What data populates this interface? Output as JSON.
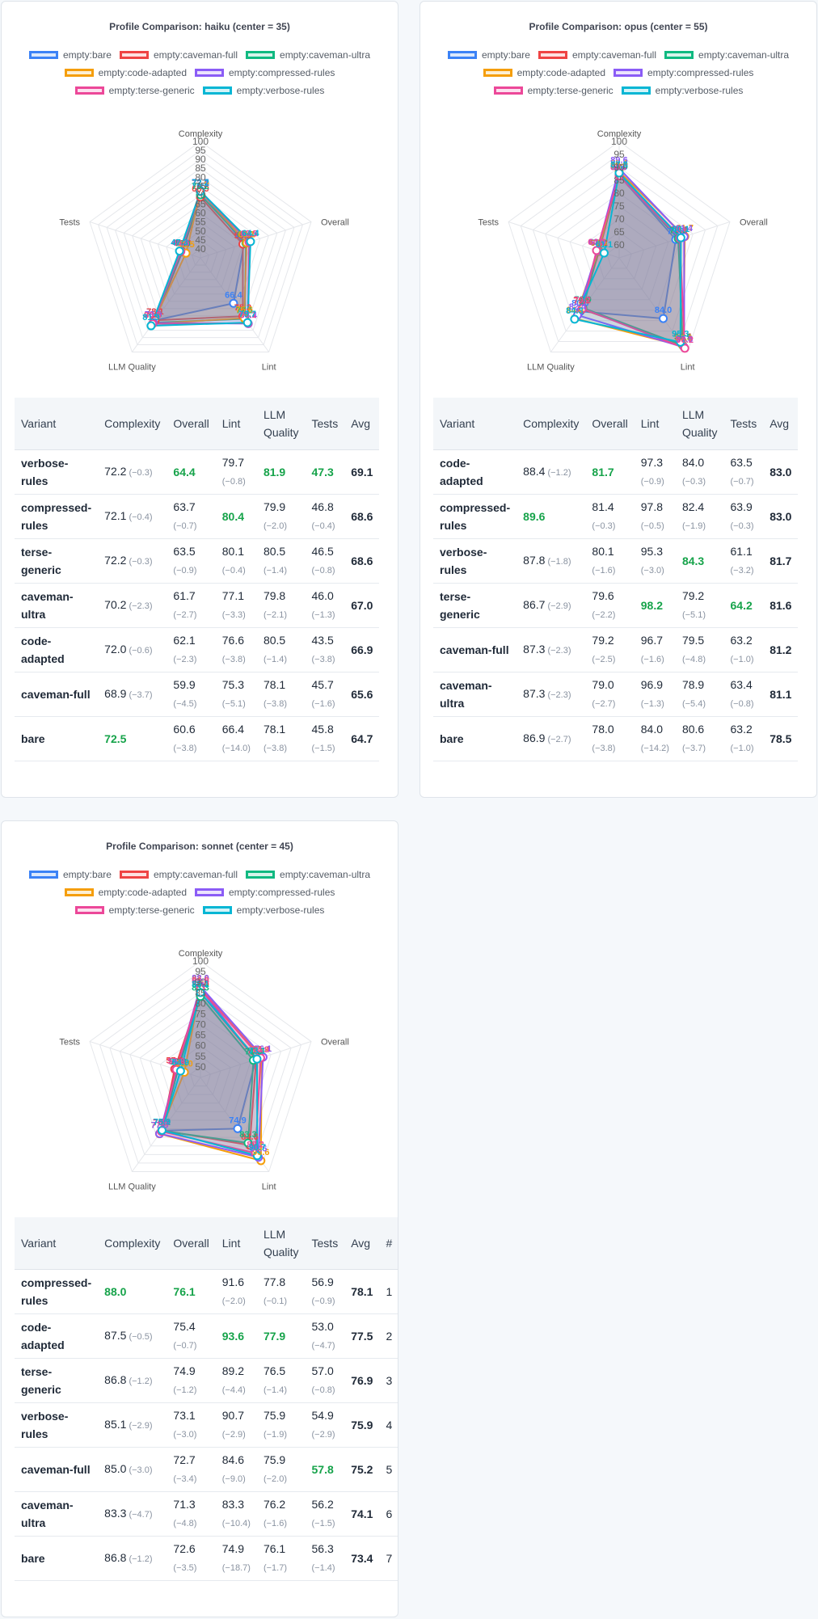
{
  "legend": [
    {
      "label": "empty:bare",
      "color": "#3b82f6",
      "fill": "#dbe8fc"
    },
    {
      "label": "empty:caveman-full",
      "color": "#ef4444",
      "fill": "#fde1e1"
    },
    {
      "label": "empty:caveman-ultra",
      "color": "#10b981",
      "fill": "#d6f4ea"
    },
    {
      "label": "empty:code-adapted",
      "color": "#f59e0b",
      "fill": "#fdefd3"
    },
    {
      "label": "empty:compressed-rules",
      "color": "#8b5cf6",
      "fill": "#ebe3fd"
    },
    {
      "label": "empty:terse-generic",
      "color": "#ec4899",
      "fill": "#fce0ef"
    },
    {
      "label": "empty:verbose-rules",
      "color": "#06b6d4",
      "fill": "#d2f3f8"
    }
  ],
  "table_headers": {
    "variant": "Variant",
    "complexity": "Complexity",
    "overall": "Overall",
    "lint": "Lint",
    "llm": "LLM Quality",
    "tests": "Tests",
    "avg": "Avg",
    "rank": "#"
  },
  "chart_data": [
    {
      "type": "radar",
      "title": "Profile Comparison: haiku  (center = 35)",
      "axes": [
        "Complexity",
        "Overall",
        "Lint",
        "LLM Quality",
        "Tests"
      ],
      "r_ticks": [
        "100",
        "95",
        "90",
        "85",
        "80",
        "75",
        "70",
        "65",
        "60",
        "55",
        "50",
        "45",
        "40"
      ],
      "r_range": [
        35,
        100
      ],
      "series": [
        {
          "name": "empty:bare",
          "values": [
            72.5,
            60.6,
            66.4,
            78.1,
            45.8
          ]
        },
        {
          "name": "empty:caveman-full",
          "values": [
            68.9,
            59.9,
            75.3,
            78.1,
            45.7
          ]
        },
        {
          "name": "empty:caveman-ultra",
          "values": [
            70.2,
            61.7,
            77.1,
            79.8,
            46.0
          ]
        },
        {
          "name": "empty:code-adapted",
          "values": [
            72.0,
            62.1,
            76.6,
            80.5,
            43.5
          ]
        },
        {
          "name": "empty:compressed-rules",
          "values": [
            72.1,
            63.7,
            80.4,
            79.9,
            46.8
          ]
        },
        {
          "name": "empty:terse-generic",
          "values": [
            72.2,
            63.5,
            80.1,
            80.5,
            46.5
          ]
        },
        {
          "name": "empty:verbose-rules",
          "values": [
            72.2,
            64.4,
            79.7,
            81.9,
            47.3
          ]
        }
      ],
      "table": {
        "show_rank": false,
        "rows": [
          {
            "variant": "verbose-\nrules",
            "complexity": "72.2",
            "complexity_delta": "(−0.3)",
            "overall": "64.4",
            "overall_delta": "",
            "lint": "79.7",
            "lint_delta": "(−0.8)",
            "llm": "81.9",
            "llm_delta": "",
            "tests": "47.3",
            "tests_delta": "",
            "avg": "69.1",
            "best": [
              "overall",
              "llm",
              "tests"
            ]
          },
          {
            "variant": "compressed-\nrules",
            "complexity": "72.1",
            "complexity_delta": "(−0.4)",
            "overall": "63.7",
            "overall_delta": "(−0.7)",
            "lint": "80.4",
            "lint_delta": "",
            "llm": "79.9",
            "llm_delta": "(−2.0)",
            "tests": "46.8",
            "tests_delta": "(−0.4)",
            "avg": "68.6",
            "best": [
              "lint"
            ]
          },
          {
            "variant": "terse-\ngeneric",
            "complexity": "72.2",
            "complexity_delta": "(−0.3)",
            "overall": "63.5",
            "overall_delta": "(−0.9)",
            "lint": "80.1",
            "lint_delta": "(−0.4)",
            "llm": "80.5",
            "llm_delta": "(−1.4)",
            "tests": "46.5",
            "tests_delta": "(−0.8)",
            "avg": "68.6",
            "best": []
          },
          {
            "variant": "caveman-\nultra",
            "complexity": "70.2",
            "complexity_delta": "(−2.3)",
            "overall": "61.7",
            "overall_delta": "(−2.7)",
            "lint": "77.1",
            "lint_delta": "(−3.3)",
            "llm": "79.8",
            "llm_delta": "(−2.1)",
            "tests": "46.0",
            "tests_delta": "(−1.3)",
            "avg": "67.0",
            "best": []
          },
          {
            "variant": "code-\nadapted",
            "complexity": "72.0",
            "complexity_delta": "(−0.6)",
            "overall": "62.1",
            "overall_delta": "(−2.3)",
            "lint": "76.6",
            "lint_delta": "(−3.8)",
            "llm": "80.5",
            "llm_delta": "(−1.4)",
            "tests": "43.5",
            "tests_delta": "(−3.8)",
            "avg": "66.9",
            "best": []
          },
          {
            "variant": "caveman-full",
            "complexity": "68.9",
            "complexity_delta": "(−3.7)",
            "overall": "59.9",
            "overall_delta": "(−4.5)",
            "lint": "75.3",
            "lint_delta": "(−5.1)",
            "llm": "78.1",
            "llm_delta": "(−3.8)",
            "tests": "45.7",
            "tests_delta": "(−1.6)",
            "avg": "65.6",
            "best": []
          },
          {
            "variant": "bare",
            "complexity": "72.5",
            "complexity_delta": "",
            "overall": "60.6",
            "overall_delta": "(−3.8)",
            "lint": "66.4",
            "lint_delta": "(−14.0)",
            "llm": "78.1",
            "llm_delta": "(−3.8)",
            "tests": "45.8",
            "tests_delta": "(−1.5)",
            "avg": "64.7",
            "best": [
              "complexity"
            ]
          }
        ]
      }
    },
    {
      "type": "radar",
      "title": "Profile Comparison: opus  (center = 55)",
      "axes": [
        "Complexity",
        "Overall",
        "Lint",
        "LLM Quality",
        "Tests"
      ],
      "r_ticks": [
        "100",
        "95",
        "90",
        "85",
        "80",
        "75",
        "70",
        "65",
        "60"
      ],
      "r_range": [
        55,
        100
      ],
      "series": [
        {
          "name": "empty:bare",
          "values": [
            86.9,
            78.0,
            84.0,
            80.6,
            63.2
          ]
        },
        {
          "name": "empty:caveman-full",
          "values": [
            87.3,
            79.2,
            96.7,
            79.5,
            63.2
          ]
        },
        {
          "name": "empty:caveman-ultra",
          "values": [
            87.3,
            79.0,
            96.9,
            78.9,
            63.4
          ]
        },
        {
          "name": "empty:code-adapted",
          "values": [
            88.4,
            81.7,
            97.3,
            84.0,
            63.5
          ]
        },
        {
          "name": "empty:compressed-rules",
          "values": [
            89.6,
            81.4,
            97.8,
            82.4,
            63.9
          ]
        },
        {
          "name": "empty:terse-generic",
          "values": [
            86.7,
            79.6,
            98.2,
            79.2,
            64.2
          ]
        },
        {
          "name": "empty:verbose-rules",
          "values": [
            87.8,
            80.1,
            95.3,
            84.3,
            61.1
          ]
        }
      ],
      "table": {
        "show_rank": false,
        "rows": [
          {
            "variant": "code-\nadapted",
            "complexity": "88.4",
            "complexity_delta": "(−1.2)",
            "overall": "81.7",
            "overall_delta": "",
            "lint": "97.3",
            "lint_delta": "(−0.9)",
            "llm": "84.0",
            "llm_delta": "(−0.3)",
            "tests": "63.5",
            "tests_delta": "(−0.7)",
            "avg": "83.0",
            "best": [
              "overall"
            ]
          },
          {
            "variant": "compressed-\nrules",
            "complexity": "89.6",
            "complexity_delta": "",
            "overall": "81.4",
            "overall_delta": "(−0.3)",
            "lint": "97.8",
            "lint_delta": "(−0.5)",
            "llm": "82.4",
            "llm_delta": "(−1.9)",
            "tests": "63.9",
            "tests_delta": "(−0.3)",
            "avg": "83.0",
            "best": [
              "complexity"
            ]
          },
          {
            "variant": "verbose-\nrules",
            "complexity": "87.8",
            "complexity_delta": "(−1.8)",
            "overall": "80.1",
            "overall_delta": "(−1.6)",
            "lint": "95.3",
            "lint_delta": "(−3.0)",
            "llm": "84.3",
            "llm_delta": "",
            "tests": "61.1",
            "tests_delta": "(−3.2)",
            "avg": "81.7",
            "best": [
              "llm"
            ]
          },
          {
            "variant": "terse-\ngeneric",
            "complexity": "86.7",
            "complexity_delta": "(−2.9)",
            "overall": "79.6",
            "overall_delta": "(−2.2)",
            "lint": "98.2",
            "lint_delta": "",
            "llm": "79.2",
            "llm_delta": "(−5.1)",
            "tests": "64.2",
            "tests_delta": "",
            "avg": "81.6",
            "best": [
              "lint",
              "tests"
            ]
          },
          {
            "variant": "caveman-full",
            "complexity": "87.3",
            "complexity_delta": "(−2.3)",
            "overall": "79.2",
            "overall_delta": "(−2.5)",
            "lint": "96.7",
            "lint_delta": "(−1.6)",
            "llm": "79.5",
            "llm_delta": "(−4.8)",
            "tests": "63.2",
            "tests_delta": "(−1.0)",
            "avg": "81.2",
            "best": []
          },
          {
            "variant": "caveman-\nultra",
            "complexity": "87.3",
            "complexity_delta": "(−2.3)",
            "overall": "79.0",
            "overall_delta": "(−2.7)",
            "lint": "96.9",
            "lint_delta": "(−1.3)",
            "llm": "78.9",
            "llm_delta": "(−5.4)",
            "tests": "63.4",
            "tests_delta": "(−0.8)",
            "avg": "81.1",
            "best": []
          },
          {
            "variant": "bare",
            "complexity": "86.9",
            "complexity_delta": "(−2.7)",
            "overall": "78.0",
            "overall_delta": "(−3.8)",
            "lint": "84.0",
            "lint_delta": "(−14.2)",
            "llm": "80.6",
            "llm_delta": "(−3.7)",
            "tests": "63.2",
            "tests_delta": "(−1.0)",
            "avg": "78.5",
            "best": []
          }
        ]
      }
    },
    {
      "type": "radar",
      "title": "Profile Comparison: sonnet  (center = 45)",
      "axes": [
        "Complexity",
        "Overall",
        "Lint",
        "LLM Quality",
        "Tests"
      ],
      "r_ticks": [
        "100",
        "95",
        "90",
        "85",
        "80",
        "75",
        "70",
        "65",
        "60",
        "55",
        "50"
      ],
      "r_range": [
        45,
        100
      ],
      "series": [
        {
          "name": "empty:bare",
          "values": [
            86.8,
            72.6,
            74.9,
            76.1,
            56.3
          ]
        },
        {
          "name": "empty:caveman-full",
          "values": [
            85.0,
            72.7,
            84.6,
            75.9,
            57.8
          ]
        },
        {
          "name": "empty:caveman-ultra",
          "values": [
            83.3,
            71.3,
            83.3,
            76.2,
            56.2
          ]
        },
        {
          "name": "empty:code-adapted",
          "values": [
            87.5,
            75.4,
            93.6,
            77.9,
            53.0
          ]
        },
        {
          "name": "empty:compressed-rules",
          "values": [
            88.0,
            76.1,
            91.6,
            77.8,
            56.9
          ]
        },
        {
          "name": "empty:terse-generic",
          "values": [
            86.8,
            74.9,
            89.2,
            76.5,
            57.0
          ]
        },
        {
          "name": "empty:verbose-rules",
          "values": [
            85.1,
            73.1,
            90.7,
            75.9,
            54.9
          ]
        }
      ],
      "table": {
        "show_rank": true,
        "rows": [
          {
            "variant": "compressed-\nrules",
            "complexity": "88.0",
            "complexity_delta": "",
            "overall": "76.1",
            "overall_delta": "",
            "lint": "91.6",
            "lint_delta": "(−2.0)",
            "llm": "77.8",
            "llm_delta": "(−0.1)",
            "tests": "56.9",
            "tests_delta": "(−0.9)",
            "avg": "78.1",
            "rank": "1",
            "best": [
              "complexity",
              "overall"
            ]
          },
          {
            "variant": "code-\nadapted",
            "complexity": "87.5",
            "complexity_delta": "(−0.5)",
            "overall": "75.4",
            "overall_delta": "(−0.7)",
            "lint": "93.6",
            "lint_delta": "",
            "llm": "77.9",
            "llm_delta": "",
            "tests": "53.0",
            "tests_delta": "(−4.7)",
            "avg": "77.5",
            "rank": "2",
            "best": [
              "lint",
              "llm"
            ]
          },
          {
            "variant": "terse-\ngeneric",
            "complexity": "86.8",
            "complexity_delta": "(−1.2)",
            "overall": "74.9",
            "overall_delta": "(−1.2)",
            "lint": "89.2",
            "lint_delta": "(−4.4)",
            "llm": "76.5",
            "llm_delta": "(−1.4)",
            "tests": "57.0",
            "tests_delta": "(−0.8)",
            "avg": "76.9",
            "rank": "3",
            "best": []
          },
          {
            "variant": "verbose-\nrules",
            "complexity": "85.1",
            "complexity_delta": "(−2.9)",
            "overall": "73.1",
            "overall_delta": "(−3.0)",
            "lint": "90.7",
            "lint_delta": "(−2.9)",
            "llm": "75.9",
            "llm_delta": "(−1.9)",
            "tests": "54.9",
            "tests_delta": "(−2.9)",
            "avg": "75.9",
            "rank": "4",
            "best": []
          },
          {
            "variant": "caveman-full",
            "complexity": "85.0",
            "complexity_delta": "(−3.0)",
            "overall": "72.7",
            "overall_delta": "(−3.4)",
            "lint": "84.6",
            "lint_delta": "(−9.0)",
            "llm": "75.9",
            "llm_delta": "(−2.0)",
            "tests": "57.8",
            "tests_delta": "",
            "avg": "75.2",
            "rank": "5",
            "best": [
              "tests"
            ]
          },
          {
            "variant": "caveman-\nultra",
            "complexity": "83.3",
            "complexity_delta": "(−4.7)",
            "overall": "71.3",
            "overall_delta": "(−4.8)",
            "lint": "83.3",
            "lint_delta": "(−10.4)",
            "llm": "76.2",
            "llm_delta": "(−1.6)",
            "tests": "56.2",
            "tests_delta": "(−1.5)",
            "avg": "74.1",
            "rank": "6",
            "best": []
          },
          {
            "variant": "bare",
            "complexity": "86.8",
            "complexity_delta": "(−1.2)",
            "overall": "72.6",
            "overall_delta": "(−3.5)",
            "lint": "74.9",
            "lint_delta": "(−18.7)",
            "llm": "76.1",
            "llm_delta": "(−1.7)",
            "tests": "56.3",
            "tests_delta": "(−1.4)",
            "avg": "73.4",
            "rank": "7",
            "best": []
          }
        ]
      }
    }
  ]
}
